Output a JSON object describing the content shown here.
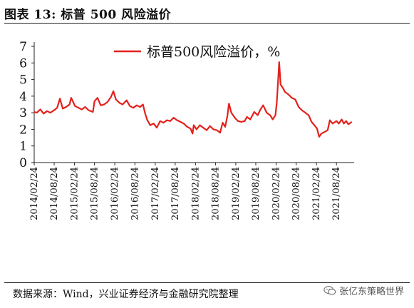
{
  "header": {
    "title": "图表 13:  标普 500 风险溢价"
  },
  "source": {
    "text": "数据来源：Wind，兴业证券经济与金融研究院整理"
  },
  "watermark": {
    "text": "张亿东策略世界",
    "icon": "wechat-icon"
  },
  "colors": {
    "line": "#e3211c",
    "axis": "#222222",
    "text": "#111111"
  },
  "chart_data": {
    "type": "line",
    "series": [
      {
        "name": "标普500风险溢价，%",
        "color": "#e3211c",
        "points": [
          [
            "2014-02-24",
            3.05
          ],
          [
            "2014-03-20",
            3.0
          ],
          [
            "2014-04-20",
            3.2
          ],
          [
            "2014-05-20",
            2.95
          ],
          [
            "2014-06-20",
            3.1
          ],
          [
            "2014-07-20",
            3.0
          ],
          [
            "2014-08-24",
            3.15
          ],
          [
            "2014-09-20",
            3.3
          ],
          [
            "2014-10-15",
            3.85
          ],
          [
            "2014-11-10",
            3.25
          ],
          [
            "2014-12-10",
            3.35
          ],
          [
            "2015-01-10",
            3.5
          ],
          [
            "2015-01-25",
            3.9
          ],
          [
            "2015-03-01",
            3.4
          ],
          [
            "2015-04-01",
            3.3
          ],
          [
            "2015-05-01",
            3.2
          ],
          [
            "2015-06-01",
            3.35
          ],
          [
            "2015-07-01",
            3.15
          ],
          [
            "2015-08-10",
            3.05
          ],
          [
            "2015-08-25",
            3.7
          ],
          [
            "2015-09-20",
            3.9
          ],
          [
            "2015-10-20",
            3.45
          ],
          [
            "2015-11-20",
            3.5
          ],
          [
            "2015-12-20",
            3.65
          ],
          [
            "2016-01-20",
            3.95
          ],
          [
            "2016-02-11",
            4.3
          ],
          [
            "2016-03-05",
            3.8
          ],
          [
            "2016-04-05",
            3.6
          ],
          [
            "2016-05-05",
            3.5
          ],
          [
            "2016-06-10",
            3.75
          ],
          [
            "2016-07-10",
            3.4
          ],
          [
            "2016-08-10",
            3.3
          ],
          [
            "2016-09-10",
            3.45
          ],
          [
            "2016-10-10",
            3.35
          ],
          [
            "2016-11-05",
            3.5
          ],
          [
            "2016-11-25",
            2.95
          ],
          [
            "2016-12-15",
            2.55
          ],
          [
            "2017-01-10",
            2.25
          ],
          [
            "2017-02-10",
            2.35
          ],
          [
            "2017-03-10",
            2.1
          ],
          [
            "2017-04-10",
            2.5
          ],
          [
            "2017-05-10",
            2.4
          ],
          [
            "2017-06-10",
            2.55
          ],
          [
            "2017-07-10",
            2.5
          ],
          [
            "2017-08-10",
            2.7
          ],
          [
            "2017-09-10",
            2.55
          ],
          [
            "2017-10-10",
            2.45
          ],
          [
            "2017-11-10",
            2.35
          ],
          [
            "2017-12-10",
            2.15
          ],
          [
            "2018-01-10",
            2.05
          ],
          [
            "2018-01-28",
            1.75
          ],
          [
            "2018-02-08",
            2.25
          ],
          [
            "2018-03-05",
            2.0
          ],
          [
            "2018-04-05",
            2.25
          ],
          [
            "2018-05-05",
            2.1
          ],
          [
            "2018-06-05",
            1.95
          ],
          [
            "2018-07-05",
            2.2
          ],
          [
            "2018-08-05",
            2.0
          ],
          [
            "2018-09-05",
            1.95
          ],
          [
            "2018-10-05",
            1.8
          ],
          [
            "2018-10-28",
            2.4
          ],
          [
            "2018-11-20",
            2.15
          ],
          [
            "2018-12-10",
            2.8
          ],
          [
            "2018-12-24",
            3.55
          ],
          [
            "2019-01-15",
            3.0
          ],
          [
            "2019-02-15",
            2.7
          ],
          [
            "2019-03-15",
            2.5
          ],
          [
            "2019-04-15",
            2.45
          ],
          [
            "2019-05-15",
            2.5
          ],
          [
            "2019-06-05",
            2.75
          ],
          [
            "2019-07-05",
            2.6
          ],
          [
            "2019-08-10",
            3.05
          ],
          [
            "2019-09-10",
            2.85
          ],
          [
            "2019-10-05",
            3.2
          ],
          [
            "2019-10-30",
            3.45
          ],
          [
            "2019-12-01",
            3.0
          ],
          [
            "2020-01-01",
            2.85
          ],
          [
            "2020-01-25",
            2.6
          ],
          [
            "2020-02-18",
            2.85
          ],
          [
            "2020-03-01",
            3.6
          ],
          [
            "2020-03-12",
            4.8
          ],
          [
            "2020-03-23",
            6.05
          ],
          [
            "2020-04-05",
            4.7
          ],
          [
            "2020-04-25",
            4.5
          ],
          [
            "2020-05-15",
            4.25
          ],
          [
            "2020-06-15",
            4.1
          ],
          [
            "2020-07-15",
            3.9
          ],
          [
            "2020-08-15",
            3.8
          ],
          [
            "2020-09-15",
            3.35
          ],
          [
            "2020-10-15",
            3.15
          ],
          [
            "2020-11-15",
            3.0
          ],
          [
            "2020-12-15",
            2.85
          ],
          [
            "2021-01-10",
            2.45
          ],
          [
            "2021-02-05",
            2.25
          ],
          [
            "2021-03-01",
            2.05
          ],
          [
            "2021-03-20",
            1.55
          ],
          [
            "2021-04-10",
            1.75
          ],
          [
            "2021-05-10",
            1.85
          ],
          [
            "2021-06-05",
            1.95
          ],
          [
            "2021-06-25",
            2.55
          ],
          [
            "2021-07-20",
            2.35
          ],
          [
            "2021-08-24",
            2.5
          ],
          [
            "2021-09-15",
            2.35
          ],
          [
            "2021-10-10",
            2.6
          ],
          [
            "2021-10-30",
            2.35
          ],
          [
            "2021-11-20",
            2.5
          ],
          [
            "2021-12-10",
            2.3
          ],
          [
            "2022-01-10",
            2.45
          ]
        ]
      }
    ],
    "x_ticks": [
      "2014/02/24",
      "2014/08/24",
      "2015/02/24",
      "2015/08/24",
      "2016/02/24",
      "2016/08/24",
      "2017/02/24",
      "2017/08/24",
      "2018/02/24",
      "2018/08/24",
      "2019/02/24",
      "2019/08/24",
      "2020/02/24",
      "2020/08/24",
      "2021/02/24",
      "2021/08/24"
    ],
    "y_ticks": [
      "0",
      "1",
      "2",
      "3",
      "4",
      "5",
      "6",
      "7"
    ],
    "ylim": [
      0,
      7
    ],
    "xlim": [
      "2014-02-24",
      "2022-01-31"
    ],
    "legend": {
      "label": "标普500风险溢价，%",
      "position": "top-center"
    },
    "grid": false
  }
}
